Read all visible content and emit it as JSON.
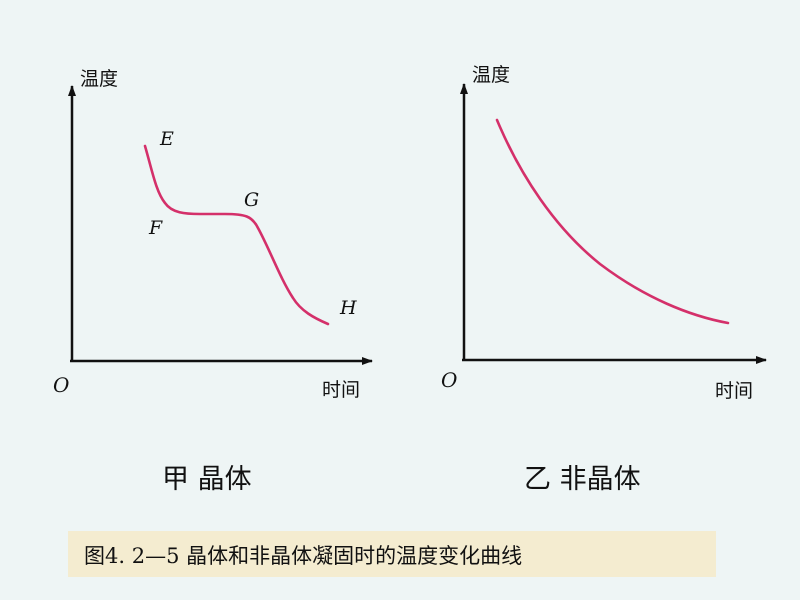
{
  "panels": [
    {
      "id": "crystal",
      "y_axis_label": "温度",
      "x_axis_label": "时间",
      "origin_label": "O",
      "title": "甲 晶体",
      "points": {
        "E": "E",
        "F": "F",
        "G": "G",
        "H": "H"
      },
      "curve_color": "#d4306a"
    },
    {
      "id": "amorphous",
      "y_axis_label": "温度",
      "x_axis_label": "时间",
      "origin_label": "O",
      "title": "乙 非晶体",
      "curve_color": "#d4306a"
    }
  ],
  "caption": "图4. 2—5 晶体和非晶体凝固时的温度变化曲线",
  "colors": {
    "background": "#eef5f5",
    "caption_bg": "#f4ecd0",
    "axis": "#111111",
    "curve": "#d4306a"
  }
}
